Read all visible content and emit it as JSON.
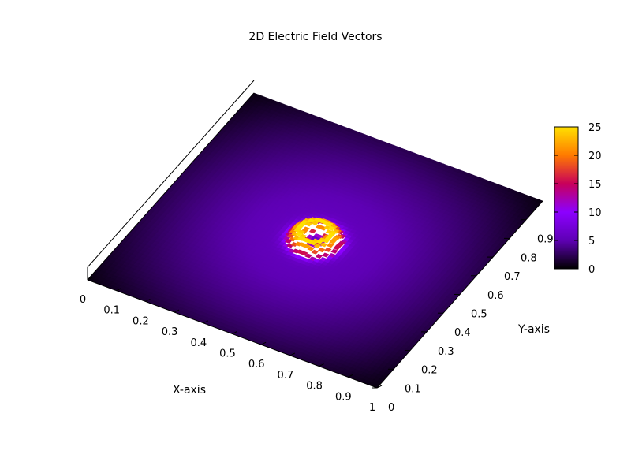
{
  "chart_data": {
    "type": "heatmap",
    "title": "2D Electric Field Vectors",
    "xlabel": "X-axis",
    "ylabel": "Y-axis",
    "xlim": [
      0,
      1
    ],
    "ylim": [
      0,
      1
    ],
    "x_ticks": [
      "0",
      "0.1",
      "0.2",
      "0.3",
      "0.4",
      "0.5",
      "0.6",
      "0.7",
      "0.8",
      "0.9",
      "1"
    ],
    "y_ticks": [
      "0",
      "0.1",
      "0.2",
      "0.3",
      "0.4",
      "0.5",
      "0.6",
      "0.7",
      "0.8",
      "0.9"
    ],
    "colorbar": {
      "range": [
        0,
        25
      ],
      "ticks": [
        "0",
        "5",
        "10",
        "15",
        "20",
        "25"
      ],
      "palette": [
        "#000000",
        "#5e00b4",
        "#8c00ff",
        "#c8005a",
        "#ff7a00",
        "#ffe000"
      ]
    },
    "field": {
      "description_free": true,
      "center": [
        0.5,
        0.5
      ],
      "peak_value": 25,
      "peak_radius": 0.05,
      "core_value": 5,
      "background_value_center": 6,
      "corner_value": 0.5
    },
    "grid": false,
    "colorbar_placement": "right"
  }
}
